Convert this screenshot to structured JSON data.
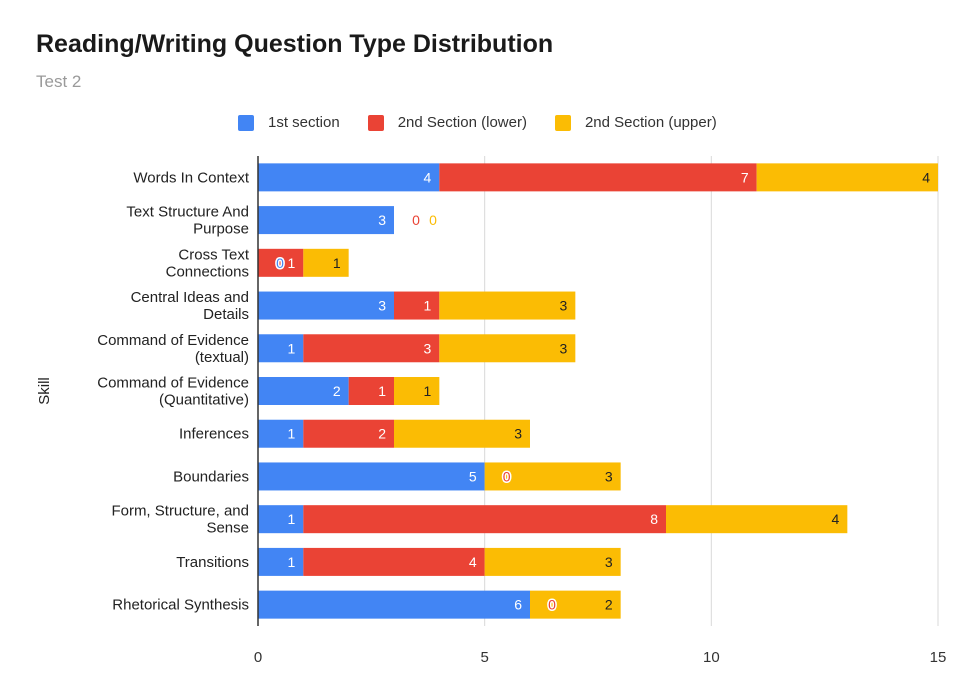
{
  "chart_data": {
    "type": "bar",
    "orientation": "horizontal",
    "stacked": true,
    "title": "Reading/Writing Question Type Distribution",
    "subtitle": "Test 2",
    "xlabel": "",
    "ylabel": "Skill",
    "xlim": [
      0,
      15
    ],
    "xticks": [
      0,
      5,
      10,
      15
    ],
    "grid": true,
    "legend_position": "top",
    "categories": [
      [
        "Words In Context"
      ],
      [
        "Text Structure And",
        "Purpose"
      ],
      [
        "Cross Text",
        "Connections"
      ],
      [
        "Central Ideas and",
        "Details"
      ],
      [
        "Command of Evidence",
        "(textual)"
      ],
      [
        "Command of Evidence",
        "(Quantitative)"
      ],
      [
        "Inferences"
      ],
      [
        "Boundaries"
      ],
      [
        "Form, Structure, and",
        "Sense"
      ],
      [
        "Transitions"
      ],
      [
        "Rhetorical Synthesis"
      ]
    ],
    "series": [
      {
        "name": "1st section",
        "color": "#4285f4",
        "label_color": "#ffffff",
        "values": [
          4,
          3,
          0,
          3,
          1,
          2,
          1,
          5,
          1,
          1,
          6
        ]
      },
      {
        "name": "2nd Section (lower)",
        "color": "#ea4335",
        "label_color": "#ffffff",
        "values": [
          7,
          0,
          1,
          1,
          3,
          1,
          2,
          0,
          8,
          4,
          0
        ]
      },
      {
        "name": "2nd Section (upper)",
        "color": "#fbbc04",
        "label_color": "#222222",
        "values": [
          4,
          0,
          1,
          3,
          3,
          1,
          3,
          3,
          4,
          3,
          2
        ]
      }
    ]
  }
}
